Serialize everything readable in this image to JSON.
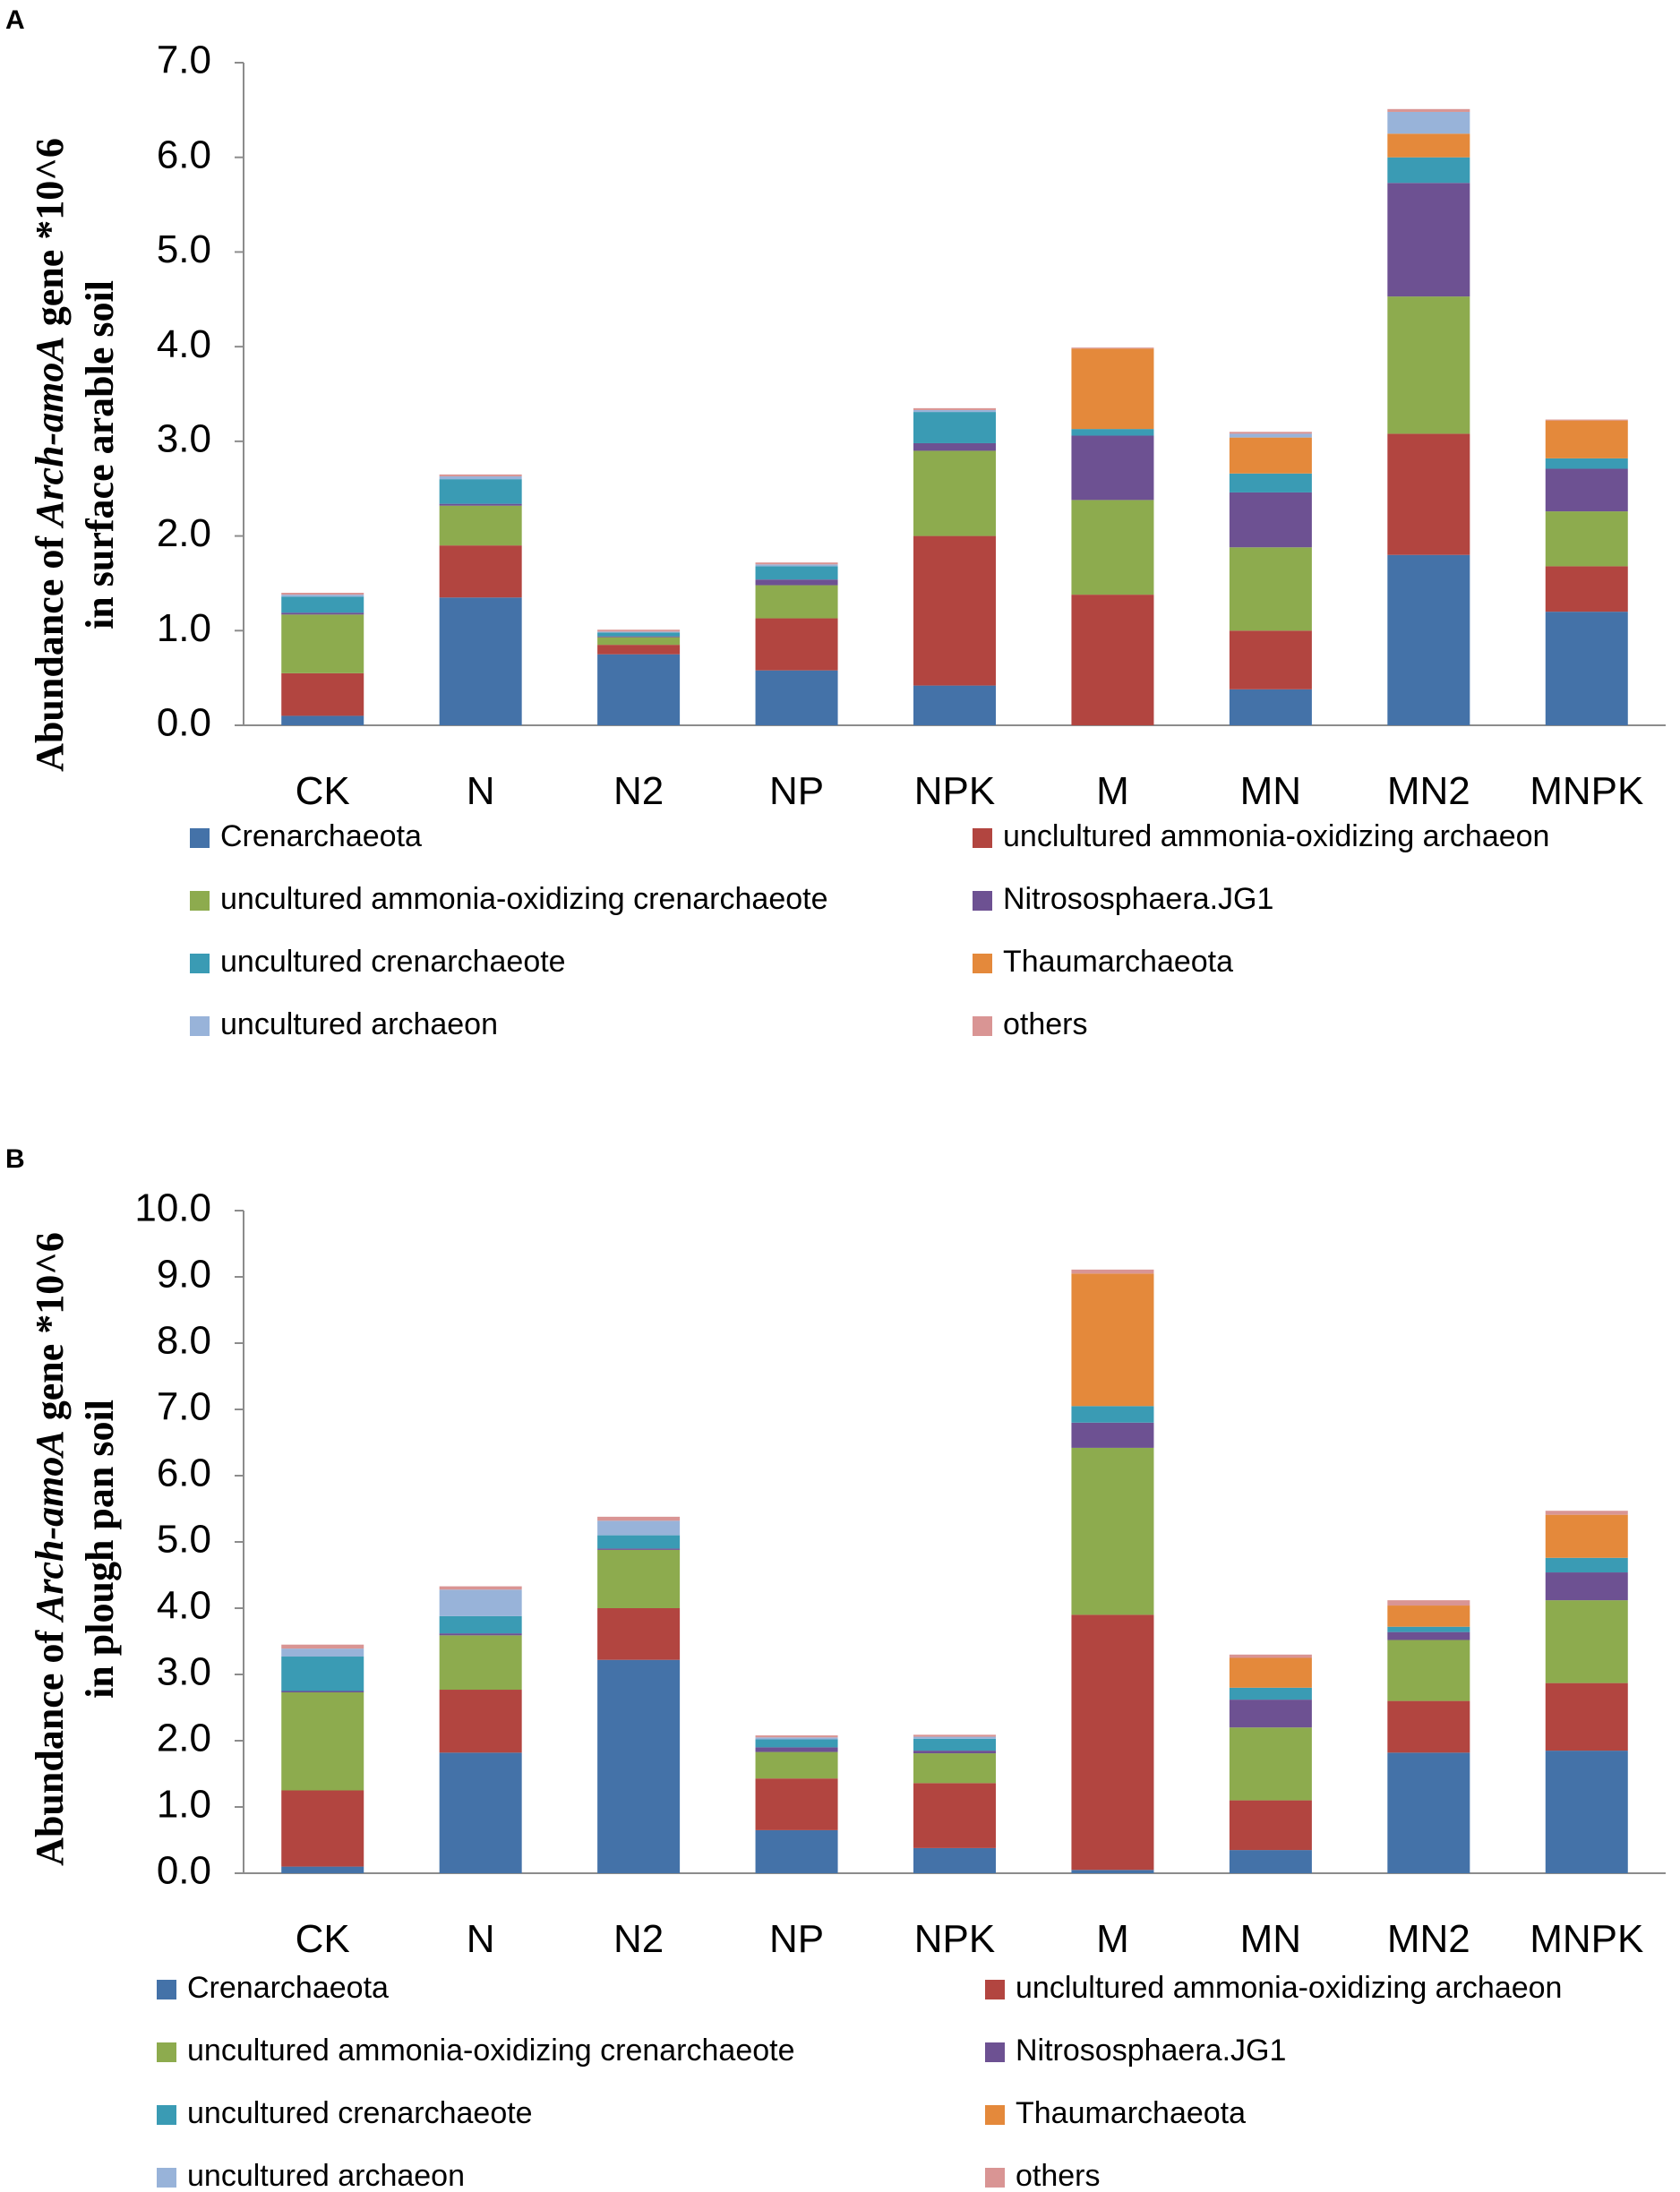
{
  "chart_data": [
    {
      "type": "bar",
      "stacked": true,
      "panel_label": "A",
      "title": "",
      "ylabel_line1_pre": "Abundance of ",
      "ylabel_line1_em": "Arch-amoA",
      "ylabel_line1_post": " gene *10^6",
      "ylabel_line2": "in surface arable soil",
      "xlabel": "",
      "ylim": [
        0,
        7
      ],
      "yticks": [
        "0.0",
        "1.0",
        "2.0",
        "3.0",
        "4.0",
        "5.0",
        "6.0",
        "7.0"
      ],
      "categories": [
        "CK",
        "N",
        "N2",
        "NP",
        "NPK",
        "M",
        "MN",
        "MN2",
        "MNPK"
      ],
      "legend_position": "bottom",
      "series": [
        {
          "name": "Crenarchaeota",
          "color": "#4472a8",
          "values": [
            0.1,
            1.35,
            0.75,
            0.58,
            0.42,
            0.0,
            0.38,
            1.8,
            1.2
          ]
        },
        {
          "name": "unclultured ammonia-oxidizing archaeon",
          "color": "#b24540",
          "values": [
            0.45,
            0.55,
            0.1,
            0.55,
            1.58,
            1.38,
            0.62,
            1.28,
            0.48
          ]
        },
        {
          "name": "uncultured ammonia-oxidizing crenarchaeote",
          "color": "#8dab4e",
          "values": [
            0.62,
            0.42,
            0.08,
            0.35,
            0.9,
            1.0,
            0.88,
            1.45,
            0.58
          ]
        },
        {
          "name": "Nitrososphaera.JG1",
          "color": "#6d5192",
          "values": [
            0.02,
            0.02,
            0.01,
            0.06,
            0.08,
            0.68,
            0.58,
            1.2,
            0.45
          ]
        },
        {
          "name": "uncultured crenarchaeote",
          "color": "#3a9bb4",
          "values": [
            0.17,
            0.26,
            0.04,
            0.14,
            0.33,
            0.07,
            0.2,
            0.27,
            0.11
          ]
        },
        {
          "name": "Thaumarchaeota",
          "color": "#e4893b",
          "values": [
            0.0,
            0.0,
            0.0,
            0.0,
            0.0,
            0.85,
            0.38,
            0.25,
            0.4
          ]
        },
        {
          "name": "uncultured archaeon",
          "color": "#98b3d9",
          "values": [
            0.02,
            0.03,
            0.01,
            0.02,
            0.02,
            0.0,
            0.04,
            0.23,
            0.0
          ]
        },
        {
          "name": "others",
          "color": "#d99594",
          "values": [
            0.02,
            0.02,
            0.02,
            0.02,
            0.02,
            0.01,
            0.02,
            0.03,
            0.01
          ]
        }
      ]
    },
    {
      "type": "bar",
      "stacked": true,
      "panel_label": "B",
      "title": "",
      "ylabel_line1_pre": "Abundance of ",
      "ylabel_line1_em": "Arch-amoA",
      "ylabel_line1_post": " gene *10^6",
      "ylabel_line2": "in plough pan soil",
      "xlabel": "",
      "ylim": [
        0,
        10
      ],
      "yticks": [
        "0.0",
        "1.0",
        "2.0",
        "3.0",
        "4.0",
        "5.0",
        "6.0",
        "7.0",
        "8.0",
        "9.0",
        "10.0"
      ],
      "categories": [
        "CK",
        "N",
        "N2",
        "NP",
        "NPK",
        "M",
        "MN",
        "MN2",
        "MNPK"
      ],
      "legend_position": "bottom",
      "series": [
        {
          "name": "Crenarchaeota",
          "color": "#4472a8",
          "values": [
            0.1,
            1.82,
            3.22,
            0.65,
            0.38,
            0.05,
            0.35,
            1.82,
            1.85
          ]
        },
        {
          "name": "unclultured ammonia-oxidizing archaeon",
          "color": "#b24540",
          "values": [
            1.15,
            0.95,
            0.78,
            0.78,
            0.98,
            3.85,
            0.75,
            0.78,
            1.02
          ]
        },
        {
          "name": "uncultured ammonia-oxidizing crenarchaeote",
          "color": "#8dab4e",
          "values": [
            1.48,
            0.82,
            0.88,
            0.4,
            0.45,
            2.52,
            1.1,
            0.92,
            1.25
          ]
        },
        {
          "name": "Nitrososphaera.JG1",
          "color": "#6d5192",
          "values": [
            0.02,
            0.03,
            0.02,
            0.07,
            0.04,
            0.38,
            0.42,
            0.12,
            0.42
          ]
        },
        {
          "name": "uncultured crenarchaeote",
          "color": "#3a9bb4",
          "values": [
            0.52,
            0.26,
            0.2,
            0.12,
            0.18,
            0.25,
            0.18,
            0.08,
            0.22
          ]
        },
        {
          "name": "Thaumarchaeota",
          "color": "#e4893b",
          "values": [
            0.0,
            0.0,
            0.0,
            0.0,
            0.0,
            2.0,
            0.45,
            0.32,
            0.65
          ]
        },
        {
          "name": "uncultured archaeon",
          "color": "#98b3d9",
          "values": [
            0.12,
            0.4,
            0.22,
            0.03,
            0.03,
            0.0,
            0.0,
            0.0,
            0.0
          ]
        },
        {
          "name": "others",
          "color": "#d99594",
          "values": [
            0.06,
            0.05,
            0.06,
            0.03,
            0.03,
            0.06,
            0.05,
            0.08,
            0.06
          ]
        }
      ]
    }
  ]
}
